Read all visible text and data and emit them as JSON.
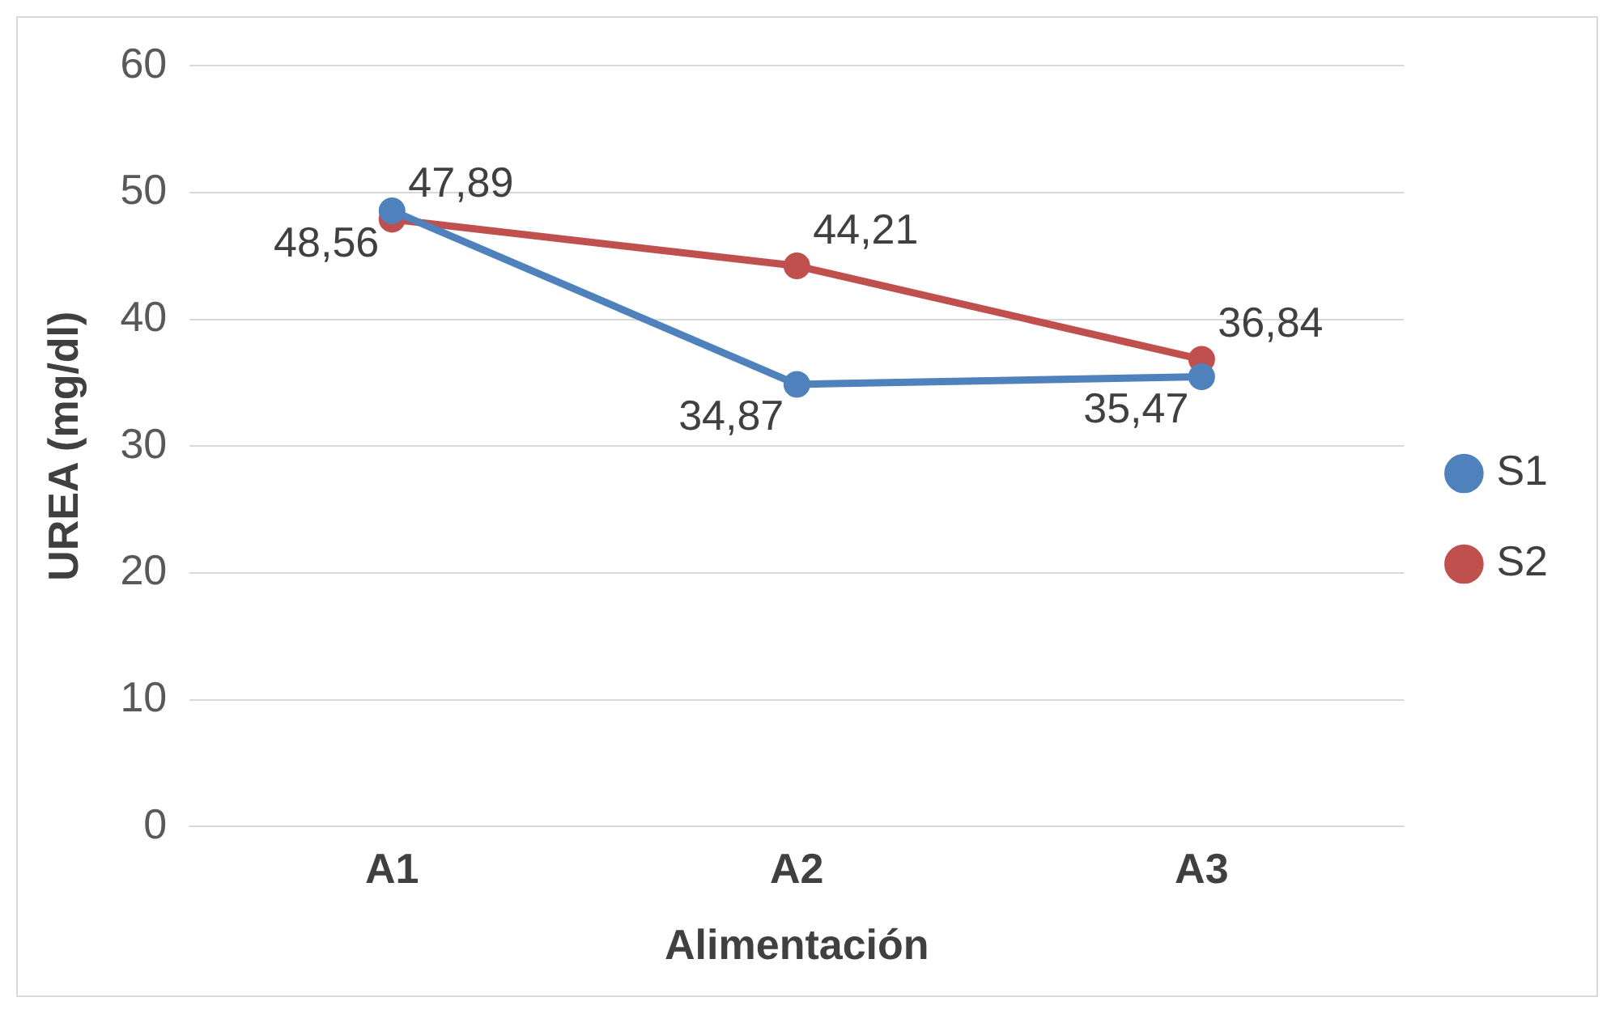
{
  "chart_data": {
    "type": "line",
    "xlabel": "Alimentación",
    "ylabel": "UREA (mg/dl)",
    "categories": [
      "A1",
      "A2",
      "A3"
    ],
    "series": [
      {
        "name": "S1",
        "color": "#4f81bd",
        "values": [
          48.56,
          34.87,
          35.47
        ],
        "value_labels": [
          "48,56",
          "34,87",
          "35,47"
        ]
      },
      {
        "name": "S2",
        "color": "#c0504d",
        "values": [
          47.89,
          44.21,
          36.84
        ],
        "value_labels": [
          "47,89",
          "44,21",
          "36,84"
        ]
      }
    ],
    "ylim": [
      0,
      60
    ],
    "yticks": [
      0,
      10,
      20,
      30,
      40,
      50,
      60
    ],
    "grid": "y",
    "legend": "right",
    "marker": "circle"
  }
}
